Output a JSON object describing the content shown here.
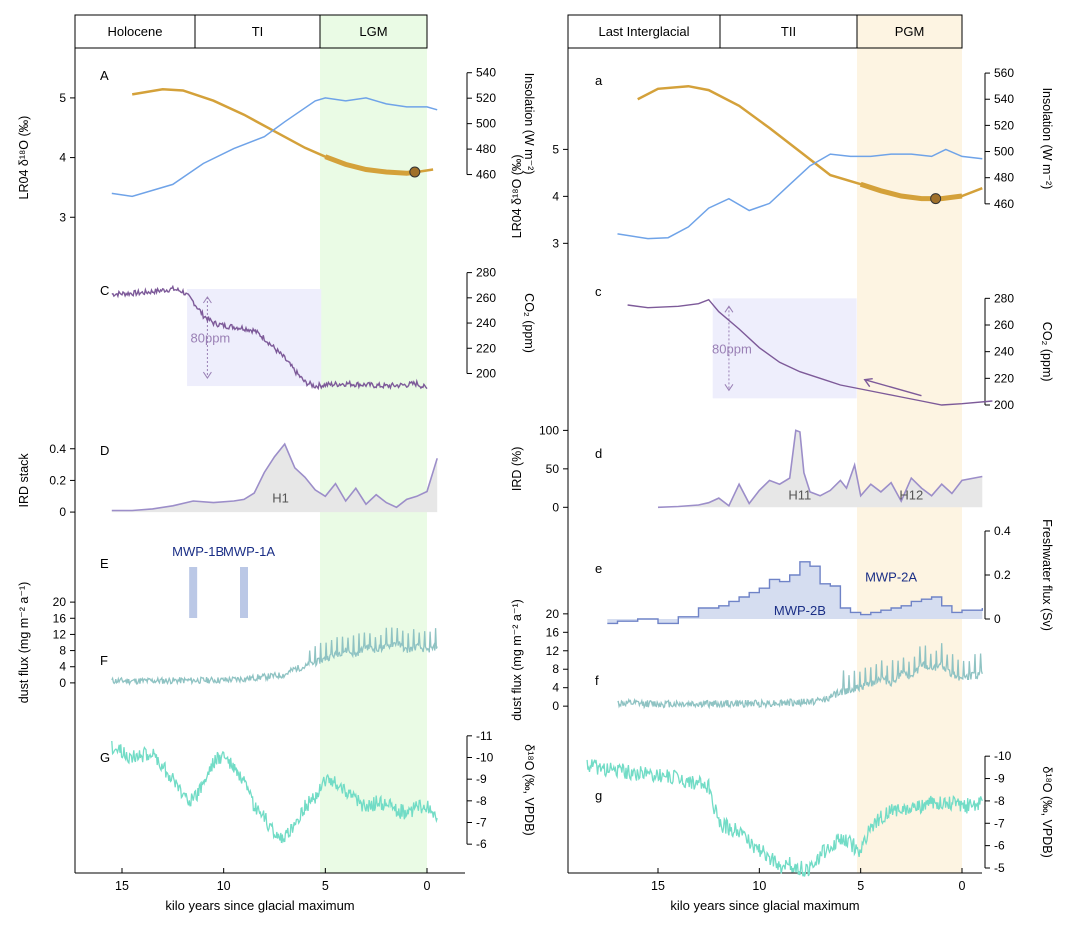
{
  "colors": {
    "insolation": "#D4A13A",
    "lr04": "#6FA3E8",
    "co2": "#7D5A99",
    "ird_line": "#9C8EC9",
    "ird_fill": "#E7E7E7",
    "dust": "#8FC3C3",
    "speleothem": "#72DCC6",
    "freshwater_fill": "#D5DDF0",
    "freshwater_line": "#6F83C7",
    "mwp_bar": "#BBC8E6",
    "mwp_text": "#1A2E86",
    "shade_co2": "#EEEEFC",
    "lgm_shade": "#EAFBE5",
    "pgm_shade": "#FDF4E2"
  },
  "chart_data": [
    {
      "type": "line",
      "panel": "T1",
      "x_label": "kilo years since glacial maximum",
      "x_ticks": [
        15,
        10,
        5,
        0
      ],
      "x_range": [
        17.5,
        -2
      ],
      "periods": [
        "Holocene",
        "TI",
        "LGM"
      ],
      "rows": [
        {
          "id": "A",
          "label": "A",
          "variable": "Insolation",
          "axis_label": "Insolation (W m⁻²)",
          "axis_side": "right",
          "range": [
            440,
            550
          ],
          "ticks": [
            460,
            480,
            500,
            520,
            540
          ],
          "x": [
            14.5,
            13,
            12,
            10.5,
            9,
            7.5,
            6,
            5,
            4,
            3,
            2,
            1,
            0.5,
            -0.3
          ],
          "values": [
            523,
            527,
            526,
            518,
            507,
            494,
            481,
            474,
            468,
            464,
            462,
            461,
            462,
            464
          ],
          "marker": {
            "x": 0.6,
            "value": 462
          }
        },
        {
          "id": "B",
          "variable": "LR04 δ18O",
          "axis_label": "LR04 δ¹⁸O (‰)",
          "axis_side": "left",
          "range": [
            2.2,
            5.3
          ],
          "ticks": [
            3,
            4,
            5
          ],
          "x": [
            15.5,
            14.5,
            12.5,
            11,
            9.5,
            8,
            7,
            5.5,
            5,
            4,
            3,
            2,
            1,
            0,
            -0.5
          ],
          "values": [
            3.4,
            3.35,
            3.55,
            3.9,
            4.15,
            4.35,
            4.6,
            4.95,
            5.0,
            4.95,
            5.0,
            4.9,
            4.85,
            4.85,
            4.8
          ]
        },
        {
          "id": "C",
          "label": "C",
          "variable": "CO2",
          "axis_label": "CO₂ (ppm)",
          "axis_side": "right",
          "range": [
            175,
            290
          ],
          "ticks": [
            200,
            220,
            240,
            260,
            280
          ],
          "x": [
            15.5,
            14,
            13,
            12.5,
            12,
            11.5,
            11,
            10.5,
            10,
            9.5,
            9,
            8.5,
            8,
            7.5,
            7,
            6.5,
            6,
            5.5,
            5,
            4,
            3,
            2,
            1,
            0.5,
            0
          ],
          "values": [
            263,
            264,
            266,
            267,
            265,
            257,
            246,
            240,
            238,
            237,
            236,
            234,
            228,
            220,
            212,
            202,
            193,
            190,
            191,
            192,
            191,
            190,
            191,
            192,
            188
          ],
          "annotation": {
            "text": "80ppm",
            "x": 10.8
          }
        },
        {
          "id": "D",
          "label": "D",
          "variable": "IRD stack",
          "axis_label": "IRD stack",
          "axis_side": "left",
          "range": [
            -0.05,
            0.55
          ],
          "ticks": [
            0,
            0.2,
            0.4
          ],
          "x": [
            15.5,
            14.5,
            13.5,
            12.5,
            11.5,
            10.5,
            9.5,
            9,
            8.5,
            8,
            7.5,
            7,
            6.5,
            6,
            5.5,
            5,
            4.5,
            4,
            3.5,
            3,
            2.5,
            2,
            1.5,
            1,
            0.5,
            0,
            -0.5
          ],
          "values": [
            0.01,
            0.01,
            0.02,
            0.04,
            0.07,
            0.06,
            0.07,
            0.08,
            0.12,
            0.25,
            0.35,
            0.43,
            0.28,
            0.22,
            0.14,
            0.1,
            0.18,
            0.07,
            0.15,
            0.05,
            0.11,
            0.06,
            0.03,
            0.08,
            0.1,
            0.13,
            0.34
          ],
          "event_label": "H1"
        },
        {
          "id": "E",
          "label": "E",
          "variable": "Meltwater pulses",
          "mwp": [
            {
              "label": "MWP-1B",
              "x": 11.5
            },
            {
              "label": "MWP-1A",
              "x": 9.0
            }
          ]
        },
        {
          "id": "F",
          "label": "F",
          "variable": "dust flux",
          "axis_label": "dust flux (mg m⁻² a⁻¹)",
          "axis_side": "left",
          "range": [
            -3,
            23
          ],
          "ticks": [
            0,
            4,
            8,
            12,
            16,
            20
          ],
          "x": [
            15.5,
            14,
            12,
            10,
            9,
            8,
            7,
            6.5,
            6,
            5.5,
            5,
            4.5,
            4,
            3.5,
            3,
            2.5,
            2,
            1.5,
            1,
            0.5,
            0,
            -0.5
          ],
          "values": [
            0.5,
            0.5,
            0.6,
            0.7,
            1,
            1.5,
            2,
            3.5,
            4,
            5,
            6,
            7,
            8,
            7,
            9,
            8,
            9,
            10,
            8,
            9,
            8,
            9
          ]
        },
        {
          "id": "G",
          "label": "G",
          "variable": "δ18O",
          "axis_label": "δ¹⁸O (‰, VPDB)",
          "axis_side": "right",
          "range": [
            -11.5,
            -5.5
          ],
          "ticks": [
            -11,
            -10,
            -9,
            -8,
            -7,
            -6
          ],
          "inverted": true,
          "x": [
            15.5,
            14.5,
            13.5,
            13,
            12.5,
            12,
            11.5,
            11,
            10.5,
            10,
            9.5,
            9,
            8.5,
            8,
            7.5,
            7,
            6.5,
            6,
            5.5,
            5,
            4.5,
            4,
            3.5,
            3,
            2.5,
            2,
            1.5,
            1,
            0.5,
            0,
            -0.5
          ],
          "values": [
            -10.5,
            -10.0,
            -10.2,
            -9.6,
            -9.0,
            -8.3,
            -8.0,
            -8.8,
            -9.8,
            -10.1,
            -9.5,
            -8.8,
            -7.7,
            -7.2,
            -6.5,
            -6.2,
            -7.0,
            -7.7,
            -8.2,
            -9.0,
            -8.8,
            -8.5,
            -8.0,
            -7.7,
            -7.9,
            -7.8,
            -7.6,
            -7.4,
            -7.7,
            -7.8,
            -7.2
          ]
        }
      ]
    },
    {
      "type": "line",
      "panel": "T2",
      "x_label": "kilo years since glacial maximum",
      "x_ticks": [
        15,
        10,
        5,
        0
      ],
      "x_range": [
        19,
        -1.5
      ],
      "periods": [
        "Last Interglacial",
        "TII",
        "PGM"
      ],
      "rows": [
        {
          "id": "a",
          "label": "a",
          "variable": "Insolation",
          "axis_label": "Insolation (W m⁻²)",
          "axis_side": "right",
          "range": [
            440,
            570
          ],
          "ticks": [
            460,
            480,
            500,
            520,
            540,
            560
          ],
          "x": [
            16,
            15,
            13.5,
            12.5,
            11,
            9.5,
            8,
            6.5,
            5,
            4,
            3,
            2,
            1,
            0,
            -1
          ],
          "values": [
            540,
            548,
            550,
            547,
            535,
            518,
            500,
            482,
            475,
            470,
            466,
            464,
            464,
            466,
            472
          ],
          "marker": {
            "x": 1.3,
            "value": 464
          }
        },
        {
          "id": "b",
          "variable": "LR04 δ18O",
          "axis_label": "LR04 δ¹⁸O (‰)",
          "axis_side": "left",
          "range": [
            1.9,
            5.2
          ],
          "ticks": [
            3,
            4,
            5
          ],
          "x": [
            17,
            15.5,
            14.5,
            13.5,
            12.5,
            11.5,
            10.5,
            9.5,
            8.5,
            7.5,
            6.5,
            5.5,
            4.5,
            3.5,
            2.5,
            1.5,
            0.8,
            0,
            -1
          ],
          "values": [
            3.2,
            3.1,
            3.12,
            3.35,
            3.75,
            3.95,
            3.7,
            3.85,
            4.25,
            4.65,
            4.9,
            4.85,
            4.85,
            4.9,
            4.9,
            4.85,
            5.0,
            4.85,
            4.8
          ]
        },
        {
          "id": "c",
          "label": "c",
          "variable": "CO2",
          "axis_label": "CO₂ (ppm)",
          "axis_side": "right",
          "range": [
            185,
            290
          ],
          "ticks": [
            200,
            220,
            240,
            260,
            280
          ],
          "x": [
            16.5,
            15.5,
            14,
            13,
            12.5,
            12,
            11,
            10,
            9,
            8,
            7,
            6,
            5,
            4,
            3,
            2,
            1,
            0,
            -1.5
          ],
          "values": [
            275,
            273,
            274,
            276,
            279,
            270,
            257,
            243,
            232,
            225,
            220,
            215,
            212,
            209,
            206,
            203,
            200,
            201,
            203
          ],
          "annotation": {
            "text": "80ppm",
            "x": 11.5
          }
        },
        {
          "id": "d",
          "label": "d",
          "variable": "IRD",
          "axis_label": "IRD (%)",
          "axis_side": "left",
          "range": [
            -10,
            120
          ],
          "ticks": [
            0,
            50,
            100
          ],
          "x": [
            15,
            14,
            13,
            12.5,
            12,
            11.5,
            11,
            10.5,
            10,
            9.5,
            9,
            8.5,
            8.2,
            8,
            7.8,
            7.5,
            7,
            6.5,
            6,
            5.7,
            5.3,
            5,
            4.5,
            4,
            3.5,
            3,
            2.5,
            2,
            1.5,
            1,
            0.5,
            0,
            -1
          ],
          "values": [
            0,
            1,
            3,
            6,
            12,
            2,
            30,
            5,
            22,
            35,
            30,
            38,
            100,
            98,
            45,
            20,
            15,
            22,
            35,
            25,
            55,
            15,
            30,
            20,
            32,
            8,
            38,
            25,
            15,
            30,
            18,
            35,
            40
          ],
          "event_labels": [
            {
              "text": "H11",
              "x": 8.0
            },
            {
              "text": "H12",
              "x": 2.5
            }
          ]
        },
        {
          "id": "e",
          "label": "e",
          "variable": "Freshwater flux",
          "axis_label": "Freshwater flux (Sv)",
          "axis_side": "right",
          "range": [
            -0.05,
            0.45
          ],
          "ticks": [
            0,
            0.2,
            0.4
          ],
          "x": [
            17.5,
            17,
            16,
            15,
            14,
            13,
            12.5,
            12,
            11.5,
            11,
            10.5,
            10,
            9.5,
            9,
            8.5,
            8,
            7.5,
            7,
            6.5,
            6,
            5.5,
            5,
            4.5,
            4,
            3.5,
            3,
            2.5,
            2,
            1.5,
            1,
            0.5,
            0,
            -1
          ],
          "values": [
            -0.02,
            -0.01,
            0,
            -0.02,
            0.01,
            0.05,
            0.05,
            0.06,
            0.08,
            0.1,
            0.12,
            0.14,
            0.18,
            0.17,
            0.2,
            0.26,
            0.24,
            0.16,
            0.15,
            0.05,
            0.03,
            0.02,
            0.03,
            0.04,
            0.05,
            0.06,
            0.08,
            0.09,
            0.1,
            0.06,
            0.03,
            0.04,
            0.05
          ],
          "mwp": [
            {
              "label": "MWP-2B",
              "x": 8.0
            },
            {
              "label": "MWP-2A",
              "x": 3.5
            }
          ]
        },
        {
          "id": "f",
          "label": "f",
          "variable": "dust flux",
          "axis_label": "dust flux (mg m⁻² a⁻¹)",
          "axis_side": "left",
          "range": [
            -3,
            23
          ],
          "ticks": [
            0,
            4,
            8,
            12,
            16,
            20
          ],
          "x": [
            17,
            15,
            12,
            10,
            8,
            7,
            6.5,
            6,
            5.5,
            5,
            4.5,
            4,
            3.5,
            3,
            2.5,
            2,
            1.5,
            1,
            0.5,
            0,
            -1
          ],
          "values": [
            0.6,
            0.5,
            0.5,
            0.6,
            0.8,
            1.2,
            2,
            3,
            3.5,
            4,
            5,
            6,
            5,
            7,
            6,
            9,
            8,
            9,
            7,
            6,
            7
          ]
        },
        {
          "id": "g",
          "label": "g",
          "variable": "δ18O",
          "axis_label": "δ¹⁸O (‰, VPDB)",
          "axis_side": "right",
          "range": [
            -10.5,
            -5
          ],
          "ticks": [
            -10,
            -9,
            -8,
            -7,
            -6,
            -5
          ],
          "inverted": true,
          "x": [
            18.5,
            17.5,
            16.5,
            15.5,
            14.5,
            13.5,
            12.5,
            12,
            11.5,
            11,
            10.5,
            10,
            9.5,
            9,
            8.5,
            8,
            7.5,
            7,
            6.5,
            6,
            5.5,
            5,
            4.5,
            4,
            3.5,
            3,
            2.5,
            2,
            1.5,
            1,
            0.5,
            0,
            -1
          ],
          "values": [
            -9.6,
            -9.4,
            -9.3,
            -9.2,
            -9.1,
            -8.9,
            -8.6,
            -7.0,
            -6.8,
            -6.7,
            -6.2,
            -5.8,
            -5.5,
            -5.0,
            -5.2,
            -5.0,
            -4.9,
            -5.6,
            -6.0,
            -6.3,
            -6.1,
            -5.7,
            -6.8,
            -7.3,
            -7.5,
            -7.6,
            -7.6,
            -7.8,
            -7.9,
            -8.0,
            -7.9,
            -7.7,
            -8.0
          ]
        }
      ]
    }
  ]
}
